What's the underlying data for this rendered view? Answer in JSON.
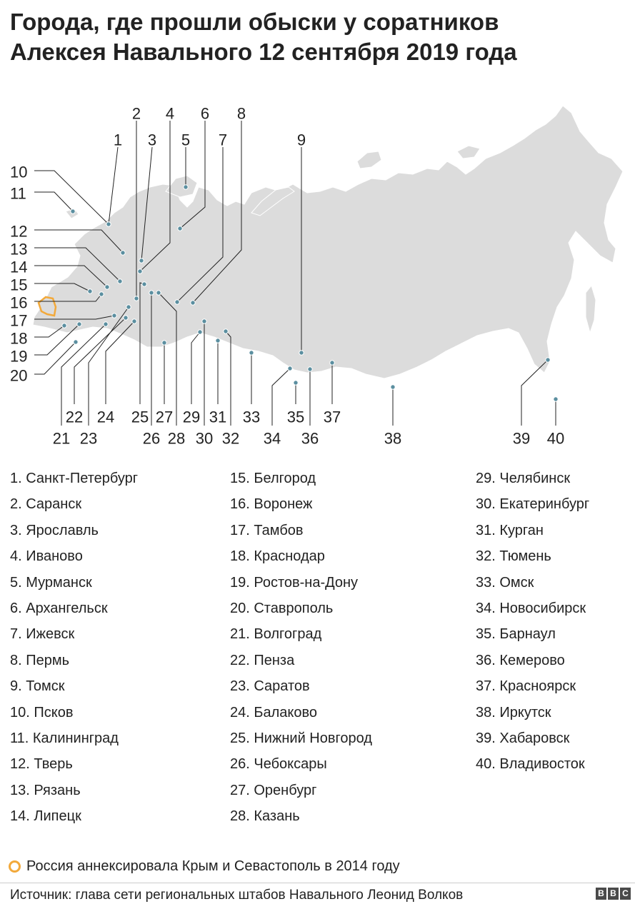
{
  "title": {
    "line1": "Города, где прошли обыски у соратников",
    "line2": "Алексея Навального 12 сентября 2019 года"
  },
  "colors": {
    "land": "#dcdcdc",
    "border": "#ffffff",
    "dot": "#5b8fa0",
    "leader": "#222222",
    "crimea": "#F2A93B"
  },
  "cities": [
    {
      "num": "1",
      "name": "1. Санкт-Петербург"
    },
    {
      "num": "2",
      "name": "2. Саранск"
    },
    {
      "num": "3",
      "name": "3. Ярославль"
    },
    {
      "num": "4",
      "name": "4. Иваново"
    },
    {
      "num": "5",
      "name": "5. Мурманск"
    },
    {
      "num": "6",
      "name": "6. Архангельск"
    },
    {
      "num": "7",
      "name": "7. Ижевск"
    },
    {
      "num": "8",
      "name": "8. Пермь"
    },
    {
      "num": "9",
      "name": "9. Томск"
    },
    {
      "num": "10",
      "name": "10. Псков"
    },
    {
      "num": "11",
      "name": "11. Калининград"
    },
    {
      "num": "12",
      "name": "12. Тверь"
    },
    {
      "num": "13",
      "name": "13. Рязань"
    },
    {
      "num": "14",
      "name": "14. Липецк"
    },
    {
      "num": "15",
      "name": "15. Белгород"
    },
    {
      "num": "16",
      "name": "16. Воронеж"
    },
    {
      "num": "17",
      "name": "17. Тамбов"
    },
    {
      "num": "18",
      "name": "18. Краснодар"
    },
    {
      "num": "19",
      "name": "19. Ростов-на-Дону"
    },
    {
      "num": "20",
      "name": "20. Ставрополь"
    },
    {
      "num": "21",
      "name": "21. Волгоград"
    },
    {
      "num": "22",
      "name": "22. Пенза"
    },
    {
      "num": "23",
      "name": "23. Саратов"
    },
    {
      "num": "24",
      "name": "24. Балаково"
    },
    {
      "num": "25",
      "name": "25. Нижний Новгород"
    },
    {
      "num": "26",
      "name": "26. Чебоксары"
    },
    {
      "num": "27",
      "name": "27. Оренбург"
    },
    {
      "num": "28",
      "name": "28. Казань"
    },
    {
      "num": "29",
      "name": "29. Челябинск"
    },
    {
      "num": "30",
      "name": "30. Екатеринбург"
    },
    {
      "num": "31",
      "name": "31. Курган"
    },
    {
      "num": "32",
      "name": "32. Тюмень"
    },
    {
      "num": "33",
      "name": "33. Омск"
    },
    {
      "num": "34",
      "name": "34. Новосибирск"
    },
    {
      "num": "35",
      "name": "35. Барнаул"
    },
    {
      "num": "36",
      "name": "36. Кемерово"
    },
    {
      "num": "37",
      "name": "37. Красноярск"
    },
    {
      "num": "38",
      "name": "38. Иркутск"
    },
    {
      "num": "39",
      "name": "39. Хабаровск"
    },
    {
      "num": "40",
      "name": "40. Владивосток"
    }
  ],
  "legend": {
    "crimea_text": "Россия аннексировала Крым и Севастополь в 2014 году"
  },
  "source": "Источник: глава сети региональных штабов Навального Леонид Волков",
  "logo": [
    "B",
    "B",
    "C"
  ]
}
